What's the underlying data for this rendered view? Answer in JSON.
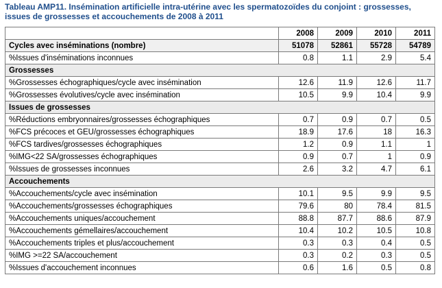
{
  "title_line1": "Tableau AMP11. Insémination artificielle intra-utérine avec les spermatozoïdes du conjoint : grossesses,",
  "title_line2": "issues de grossesses et accouchements de 2008 à 2011",
  "years": [
    "2008",
    "2009",
    "2010",
    "2011"
  ],
  "colors": {
    "title": "#1f4e8c",
    "section_bg": "#ebebeb",
    "border": "#7a7a7a"
  },
  "rows": [
    {
      "type": "bold",
      "label": "Cycles avec inséminations (nombre)",
      "values": [
        "51078",
        "52861",
        "55728",
        "54789"
      ]
    },
    {
      "type": "data",
      "label": "%Issues d'inséminations inconnues",
      "values": [
        "0.8",
        "1.1",
        "2.9",
        "5.4"
      ]
    },
    {
      "type": "section",
      "label": "Grossesses"
    },
    {
      "type": "data",
      "label": "%Grossesses échographiques/cycle avec insémination",
      "values": [
        "12.6",
        "11.9",
        "12.6",
        "11.7"
      ]
    },
    {
      "type": "data",
      "label": "%Grossesses évolutives/cycle avec insémination",
      "values": [
        "10.5",
        "9.9",
        "10.4",
        "9.9"
      ]
    },
    {
      "type": "section",
      "label": "Issues de grossesses"
    },
    {
      "type": "data",
      "label": "%Réductions embryonnaires/grossesses échographiques",
      "values": [
        "0.7",
        "0.9",
        "0.7",
        "0.5"
      ]
    },
    {
      "type": "data",
      "label": "%FCS précoces et GEU/grossesses échographiques",
      "values": [
        "18.9",
        "17.6",
        "18",
        "16.3"
      ]
    },
    {
      "type": "data",
      "label": "%FCS tardives/grossesses échographiques",
      "values": [
        "1.2",
        "0.9",
        "1.1",
        "1"
      ]
    },
    {
      "type": "data",
      "label": "%IMG<22 SA/grossesses échographiques",
      "values": [
        "0.9",
        "0.7",
        "1",
        "0.9"
      ]
    },
    {
      "type": "data",
      "label": "%Issues de grossesses inconnues",
      "values": [
        "2.6",
        "3.2",
        "4.7",
        "6.1"
      ]
    },
    {
      "type": "section",
      "label": "Accouchements"
    },
    {
      "type": "data",
      "label": "%Accouchements/cycle avec insémination",
      "values": [
        "10.1",
        "9.5",
        "9.9",
        "9.5"
      ]
    },
    {
      "type": "data",
      "label": "%Accouchements/grossesses échographiques",
      "values": [
        "79.6",
        "80",
        "78.4",
        "81.5"
      ]
    },
    {
      "type": "data",
      "label": "%Accouchements uniques/accouchement",
      "values": [
        "88.8",
        "87.7",
        "88.6",
        "87.9"
      ]
    },
    {
      "type": "data",
      "label": "%Accouchements gémellaires/accouchement",
      "values": [
        "10.4",
        "10.2",
        "10.5",
        "10.8"
      ]
    },
    {
      "type": "data",
      "label": "%Accouchements triples et plus/accouchement",
      "values": [
        "0.3",
        "0.3",
        "0.4",
        "0.5"
      ]
    },
    {
      "type": "data",
      "label": "%IMG >=22 SA/accouchement",
      "values": [
        "0.3",
        "0.2",
        "0.3",
        "0.5"
      ]
    },
    {
      "type": "data",
      "label": "%Issues d'accouchement inconnues",
      "values": [
        "0.6",
        "1.6",
        "0.5",
        "0.8"
      ]
    }
  ]
}
